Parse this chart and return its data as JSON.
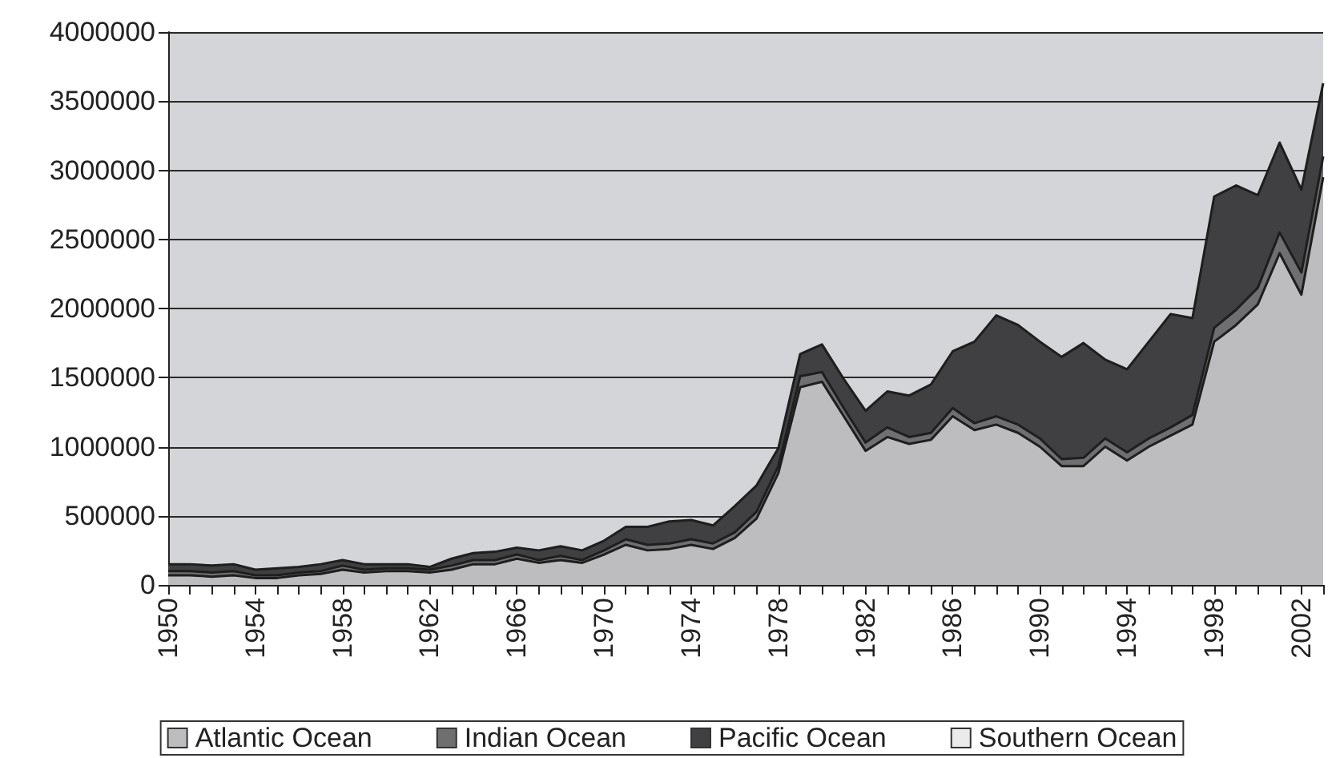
{
  "chart_data": {
    "type": "area",
    "stacked": true,
    "categories": [
      "1950",
      null,
      null,
      null,
      "1954",
      null,
      null,
      null,
      "1958",
      null,
      null,
      null,
      "1962",
      null,
      null,
      null,
      "1966",
      null,
      null,
      null,
      "1970",
      null,
      null,
      null,
      "1974",
      null,
      null,
      null,
      "1978",
      null,
      null,
      null,
      "1982",
      null,
      null,
      null,
      "1986",
      null,
      null,
      null,
      "1990",
      null,
      null,
      null,
      "1994",
      null,
      null,
      null,
      "1998",
      null,
      null,
      null,
      "2002",
      null
    ],
    "series": [
      {
        "name": "Atlantic Ocean",
        "color": "#bdbdc0",
        "values": [
          70000,
          70000,
          60000,
          70000,
          50000,
          50000,
          70000,
          80000,
          110000,
          90000,
          100000,
          100000,
          90000,
          110000,
          150000,
          150000,
          190000,
          160000,
          180000,
          160000,
          220000,
          290000,
          250000,
          260000,
          290000,
          260000,
          340000,
          480000,
          810000,
          1430000,
          1470000,
          1220000,
          970000,
          1070000,
          1020000,
          1050000,
          1220000,
          1120000,
          1160000,
          1100000,
          1000000,
          860000,
          860000,
          1000000,
          900000,
          1000000,
          1080000,
          1160000,
          1760000,
          1880000,
          2030000,
          2400000,
          2100000,
          2950000
        ]
      },
      {
        "name": "Indian Ocean",
        "color": "#6f6f72",
        "values": [
          30000,
          30000,
          30000,
          30000,
          20000,
          20000,
          20000,
          20000,
          30000,
          20000,
          20000,
          20000,
          20000,
          30000,
          30000,
          30000,
          30000,
          20000,
          30000,
          20000,
          30000,
          40000,
          40000,
          40000,
          40000,
          40000,
          40000,
          50000,
          50000,
          80000,
          70000,
          60000,
          60000,
          70000,
          50000,
          50000,
          60000,
          50000,
          60000,
          60000,
          60000,
          50000,
          60000,
          60000,
          60000,
          60000,
          60000,
          70000,
          100000,
          110000,
          120000,
          150000,
          160000,
          150000
        ]
      },
      {
        "name": "Pacific Ocean",
        "color": "#404042",
        "values": [
          50000,
          50000,
          50000,
          50000,
          40000,
          50000,
          40000,
          50000,
          40000,
          40000,
          30000,
          30000,
          20000,
          50000,
          50000,
          60000,
          50000,
          70000,
          70000,
          70000,
          70000,
          90000,
          130000,
          160000,
          140000,
          130000,
          190000,
          190000,
          130000,
          160000,
          200000,
          210000,
          230000,
          260000,
          300000,
          350000,
          410000,
          590000,
          730000,
          720000,
          700000,
          740000,
          830000,
          570000,
          600000,
          700000,
          820000,
          700000,
          950000,
          900000,
          670000,
          650000,
          600000,
          530000
        ]
      },
      {
        "name": "Southern Ocean",
        "color": "#ebebeb",
        "values": [
          null,
          null,
          null,
          null,
          null,
          null,
          null,
          null,
          null,
          null,
          null,
          null,
          null,
          null,
          null,
          null,
          null,
          null,
          null,
          null,
          null,
          null,
          null,
          null,
          null,
          null,
          null,
          null,
          null,
          null,
          null,
          null,
          null,
          null,
          null,
          null,
          null,
          null,
          null,
          null,
          null,
          null,
          null,
          null,
          null,
          null,
          null,
          null,
          null,
          null,
          null,
          null,
          null,
          null
        ]
      }
    ],
    "ylim": [
      0,
      4000000
    ],
    "yticks": [
      0,
      500000,
      1000000,
      1500000,
      2000000,
      2500000,
      3000000,
      3500000,
      4000000
    ],
    "grid": "y",
    "legend": "bottom"
  }
}
